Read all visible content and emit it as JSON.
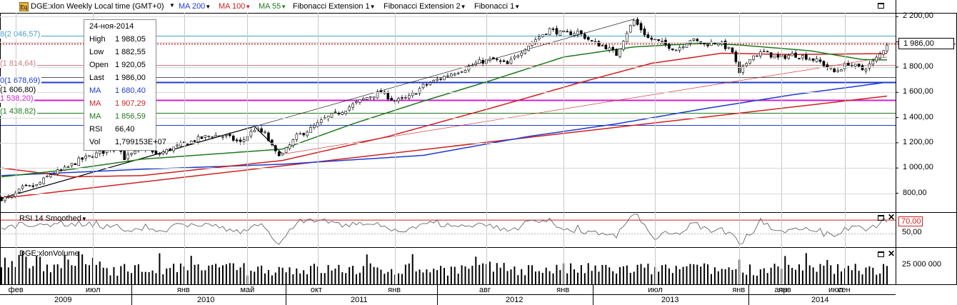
{
  "toolbar": {
    "symbol_title": "DGE:xlon Weekly Local time (GMT+0)",
    "studies": [
      {
        "label": "MA 200",
        "color": "#1f3bd0"
      },
      {
        "label": "MA 100",
        "color": "#d01f1f"
      },
      {
        "label": "MA 55",
        "color": "#1e7a1e"
      },
      {
        "label": "Fibonacci Extension 1",
        "color": "#000000"
      },
      {
        "label": "Fibonacci Extension 2",
        "color": "#000000"
      },
      {
        "label": "Fibonacci 1",
        "color": "#000000"
      }
    ]
  },
  "info": {
    "date": "24-ноя-2014",
    "rows": [
      {
        "k": "High",
        "v": "1 988,05",
        "color": "#000000"
      },
      {
        "k": "Low",
        "v": "1 882,55",
        "color": "#000000"
      },
      {
        "k": "Open",
        "v": "1 920,05",
        "color": "#000000"
      },
      {
        "k": "Last",
        "v": "1 986,00",
        "color": "#000000"
      },
      {
        "k": "MA",
        "v": "1 680,40",
        "color": "#1f3bd0"
      },
      {
        "k": "MA",
        "v": "1 907,29",
        "color": "#d01f1f"
      },
      {
        "k": "MA",
        "v": "1 856,59",
        "color": "#1e7a1e"
      },
      {
        "k": "RSI",
        "v": "66,40",
        "color": "#000000"
      },
      {
        "k": "Vol",
        "v": "1,799153E+07",
        "color": "#000000"
      }
    ]
  },
  "fib_labels": [
    {
      "text": "8(2 046,57)",
      "value": 2046.57,
      "color": "#4aa0c8"
    },
    {
      "text": "(1 814,64)",
      "value": 1814.64,
      "color": "#c88080"
    },
    {
      "text": "0(1 678,69)",
      "value": 1678.69,
      "color": "#1f3bd0"
    },
    {
      "text": "(1 606,80)",
      "value": 1606.8,
      "color": "#000000"
    },
    {
      "text": "1 538,20)",
      "value": 1538.2,
      "color": "#d01fd0"
    },
    {
      "text": "(1 438,82)",
      "value": 1438.82,
      "color": "#1e7a1e"
    }
  ],
  "chart_data": [
    {
      "type": "candlestick",
      "title": "DGE:xlon Weekly",
      "y_ticks": [
        "2 200,00",
        "2 000,00",
        "1 800,00",
        "1 600,00",
        "1 400,00",
        "1 200,00",
        "1 000,00",
        "800,00"
      ],
      "ylim": [
        650,
        2230
      ],
      "last_price_label": "1 986,00",
      "last_price": 1986.0,
      "horizontal_levels": [
        {
          "value": 2046.57,
          "color": "#4aa0c8"
        },
        {
          "value": 1986.0,
          "color": "#d01f1f",
          "style": "dotted"
        },
        {
          "value": 1814.64,
          "color": "#c88080"
        },
        {
          "value": 1720,
          "color": "#555555"
        },
        {
          "value": 1678.69,
          "color": "#1f3bd0"
        },
        {
          "value": 1538.2,
          "color": "#d01fd0"
        },
        {
          "value": 1438.82,
          "color": "#1e7a1e"
        },
        {
          "value": 1340,
          "color": "#1f3bd0"
        }
      ],
      "price_path": [
        [
          0,
          760
        ],
        [
          3,
          770
        ],
        [
          6,
          840
        ],
        [
          10,
          860
        ],
        [
          14,
          950
        ],
        [
          18,
          990
        ],
        [
          22,
          1060
        ],
        [
          26,
          1100
        ],
        [
          30,
          1140
        ],
        [
          33,
          1180
        ],
        [
          35,
          1080
        ],
        [
          38,
          1120
        ],
        [
          41,
          1160
        ],
        [
          44,
          1100
        ],
        [
          48,
          1150
        ],
        [
          52,
          1190
        ],
        [
          56,
          1230
        ],
        [
          60,
          1260
        ],
        [
          64,
          1250
        ],
        [
          68,
          1200
        ],
        [
          72,
          1310
        ],
        [
          75,
          1270
        ],
        [
          78,
          1120
        ],
        [
          80,
          1110
        ],
        [
          84,
          1250
        ],
        [
          88,
          1310
        ],
        [
          92,
          1390
        ],
        [
          96,
          1440
        ],
        [
          100,
          1500
        ],
        [
          104,
          1560
        ],
        [
          108,
          1600
        ],
        [
          112,
          1530
        ],
        [
          116,
          1560
        ],
        [
          120,
          1650
        ],
        [
          124,
          1700
        ],
        [
          128,
          1750
        ],
        [
          132,
          1790
        ],
        [
          136,
          1840
        ],
        [
          140,
          1860
        ],
        [
          144,
          1820
        ],
        [
          148,
          1930
        ],
        [
          152,
          2020
        ],
        [
          156,
          2100
        ],
        [
          160,
          2060
        ],
        [
          164,
          2080
        ],
        [
          168,
          2000
        ],
        [
          172,
          1960
        ],
        [
          175,
          1900
        ],
        [
          178,
          2080
        ],
        [
          180,
          2170
        ],
        [
          184,
          2030
        ],
        [
          188,
          1990
        ],
        [
          192,
          1940
        ],
        [
          196,
          2020
        ],
        [
          200,
          1980
        ],
        [
          204,
          2000
        ],
        [
          208,
          1920
        ],
        [
          210,
          1740
        ],
        [
          213,
          1880
        ],
        [
          217,
          1920
        ],
        [
          221,
          1870
        ],
        [
          225,
          1900
        ],
        [
          229,
          1880
        ],
        [
          233,
          1840
        ],
        [
          237,
          1760
        ],
        [
          241,
          1830
        ],
        [
          245,
          1780
        ],
        [
          248,
          1840
        ],
        [
          250,
          1900
        ],
        [
          252,
          1986
        ]
      ],
      "ma200": [
        [
          0,
          940
        ],
        [
          40,
          990
        ],
        [
          80,
          1030
        ],
        [
          120,
          1100
        ],
        [
          150,
          1250
        ],
        [
          175,
          1350
        ],
        [
          200,
          1470
        ],
        [
          225,
          1580
        ],
        [
          252,
          1680
        ]
      ],
      "ma100": [
        [
          0,
          1000
        ],
        [
          20,
          930
        ],
        [
          40,
          940
        ],
        [
          80,
          1060
        ],
        [
          110,
          1250
        ],
        [
          140,
          1480
        ],
        [
          165,
          1680
        ],
        [
          185,
          1830
        ],
        [
          205,
          1910
        ],
        [
          225,
          1900
        ],
        [
          252,
          1907
        ]
      ],
      "ma55": [
        [
          0,
          930
        ],
        [
          20,
          990
        ],
        [
          40,
          1070
        ],
        [
          60,
          1110
        ],
        [
          80,
          1150
        ],
        [
          100,
          1350
        ],
        [
          120,
          1530
        ],
        [
          140,
          1700
        ],
        [
          160,
          1880
        ],
        [
          180,
          1960
        ],
        [
          200,
          1990
        ],
        [
          210,
          1975
        ],
        [
          230,
          1930
        ],
        [
          245,
          1860
        ],
        [
          252,
          1857
        ]
      ],
      "x_months": [
        {
          "label": "фев",
          "idx": 4
        },
        {
          "label": "июл",
          "idx": 26
        },
        {
          "label": "янв",
          "idx": 52
        },
        {
          "label": "май",
          "idx": 70
        },
        {
          "label": "окт",
          "idx": 90
        },
        {
          "label": "янв",
          "idx": 112
        },
        {
          "label": "авг",
          "idx": 138
        },
        {
          "label": "янв",
          "idx": 160
        },
        {
          "label": "июл",
          "idx": 186
        },
        {
          "label": "янв",
          "idx": 210
        },
        {
          "label": "апр",
          "idx": 222
        },
        {
          "label": "сен",
          "idx": 240
        }
      ],
      "x_years": [
        "2009",
        "2010",
        "2011",
        "2012",
        "2013",
        "2014"
      ]
    },
    {
      "type": "line",
      "title": "RSI 14 Smoothed",
      "levels": [
        70,
        50
      ],
      "level_label": "70,00",
      "tick_label": "50,00",
      "ylim": [
        30,
        80
      ],
      "last_value": 66.4
    },
    {
      "type": "bar",
      "title": "DGE:xlonVolume",
      "tick_label": "25 000 000",
      "last_value": 17991530
    }
  ],
  "x_axis_labels": {
    "months": [
      "фев",
      "июл",
      "янв",
      "май",
      "окт",
      "янв",
      "авг",
      "янв",
      "июл",
      "янв",
      "апр",
      "сен",
      "янв",
      "июл"
    ],
    "years": [
      "2009",
      "2010",
      "2011",
      "2012",
      "2013",
      "2014"
    ]
  }
}
